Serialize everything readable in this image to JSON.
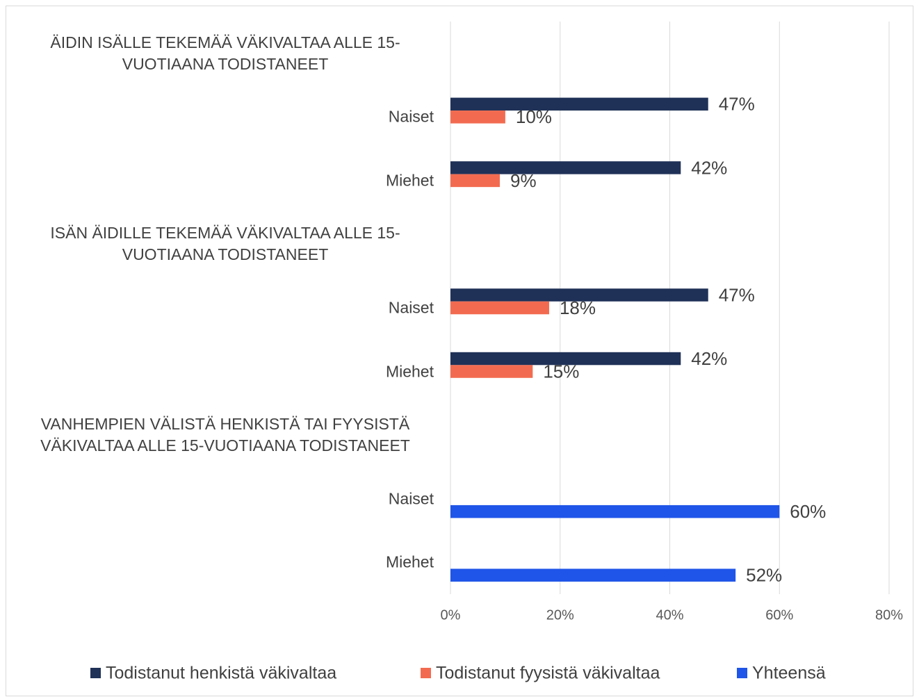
{
  "chart_data": {
    "type": "bar",
    "orientation": "horizontal",
    "categories": [
      "ÄIDIN ISÄLLE TEKEMÄÄ VÄKIVALTAA ALLE 15-VUOTIAANA TODISTANEET",
      "Naiset",
      "Miehet",
      "ISÄN ÄIDILLE TEKEMÄÄ VÄKIVALTAA ALLE 15-VUOTIAANA TODISTANEET",
      "Naiset",
      "Miehet",
      "VANHEMPIEN VÄLISTÄ HENKISTÄ TAI FYYSISTÄ VÄKIVALTAA ALLE 15-VUOTIAANA TODISTANEET",
      "Naiset",
      "Miehet"
    ],
    "series": [
      {
        "name": "Todistanut henkistä väkivaltaa",
        "color": "#1f3157",
        "values": [
          null,
          47,
          42,
          null,
          47,
          42,
          null,
          null,
          null
        ],
        "value_labels": [
          null,
          "47%",
          "42%",
          null,
          "47%",
          "42%",
          null,
          null,
          null
        ]
      },
      {
        "name": "Todistanut fyysistä väkivaltaa",
        "color": "#f26b50",
        "values": [
          null,
          10,
          9,
          null,
          18,
          15,
          null,
          null,
          null
        ],
        "value_labels": [
          null,
          "10%",
          "9%",
          null,
          "18%",
          "15%",
          null,
          null,
          null
        ]
      },
      {
        "name": "Yhteensä",
        "color": "#1f55e8",
        "values": [
          null,
          null,
          null,
          null,
          null,
          null,
          null,
          60,
          52
        ],
        "value_labels": [
          null,
          null,
          null,
          null,
          null,
          null,
          null,
          "60%",
          "52%"
        ]
      }
    ],
    "xlim": [
      0,
      80
    ],
    "xticks": [
      {
        "value": 0,
        "label": "0%"
      },
      {
        "value": 20,
        "label": "20%"
      },
      {
        "value": 40,
        "label": "40%"
      },
      {
        "value": 60,
        "label": "60%"
      },
      {
        "value": 80,
        "label": "80%"
      }
    ],
    "grid": true,
    "legend": "bottom"
  }
}
